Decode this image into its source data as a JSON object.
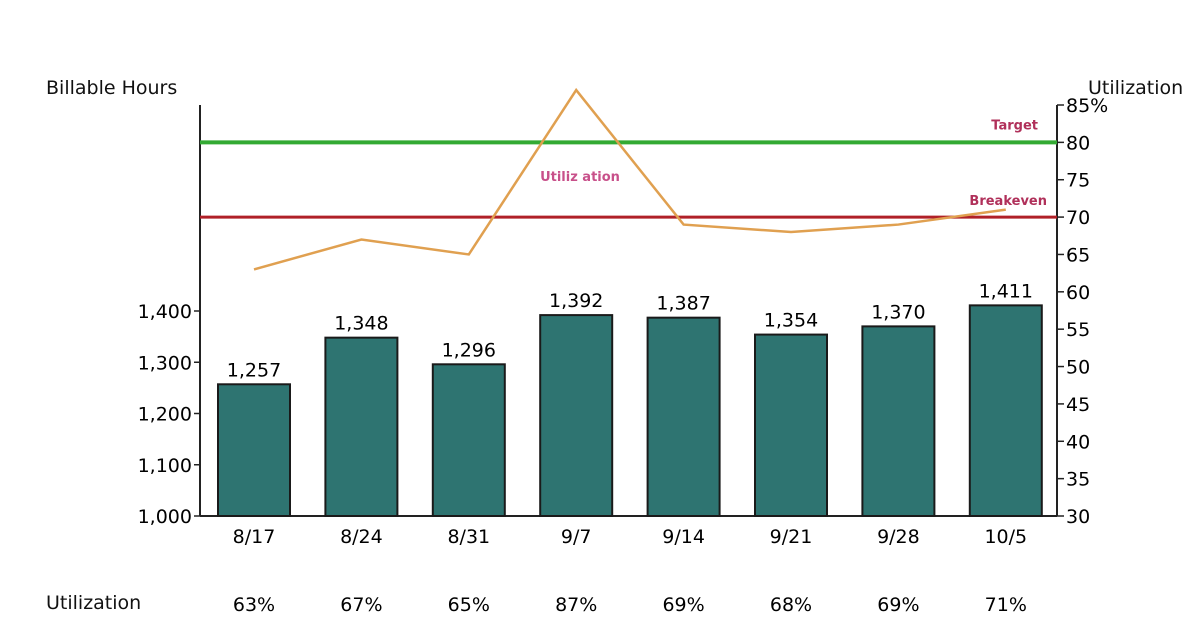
{
  "chart_data": {
    "type": "bar",
    "categories": [
      "8/17",
      "8/24",
      "8/31",
      "9/7",
      "9/14",
      "9/21",
      "9/28",
      "10/5"
    ],
    "series": [
      {
        "name": "Billable Hours",
        "type": "bar",
        "axis": "left",
        "color": "#2e7471",
        "values": [
          1257,
          1348,
          1296,
          1392,
          1387,
          1354,
          1370,
          1411
        ],
        "labels": [
          "1,257",
          "1,348",
          "1,296",
          "1,392",
          "1,387",
          "1,354",
          "1,370",
          "1,411"
        ]
      },
      {
        "name": "Utilization",
        "type": "line",
        "axis": "right",
        "color": "#e0a050",
        "values": [
          63,
          67,
          65,
          87,
          69,
          68,
          69,
          71
        ]
      }
    ],
    "reference_lines": [
      {
        "name": "Target",
        "value": 80,
        "axis": "right",
        "color": "#33aa33"
      },
      {
        "name": "Breakeven",
        "value": 70,
        "axis": "right",
        "color": "#b02028"
      }
    ],
    "ylabel": "Billable Hours",
    "ylim": [
      1000,
      1400
    ],
    "yticks": [
      "1,000",
      "1,100",
      "1,200",
      "1,300",
      "1,400"
    ],
    "y2label": "Utilization",
    "y2lim": [
      30,
      85
    ],
    "y2ticks": [
      "30",
      "35",
      "40",
      "45",
      "50",
      "55",
      "60",
      "65",
      "70",
      "75",
      "80",
      "85%"
    ],
    "line_annotation": "Utiliz ation",
    "target_label": "Target",
    "breakeven_label": "Breakeven",
    "table_row_label": "Utilization",
    "table_values": [
      "63%",
      "67%",
      "65%",
      "87%",
      "69%",
      "68%",
      "69%",
      "71%"
    ]
  }
}
